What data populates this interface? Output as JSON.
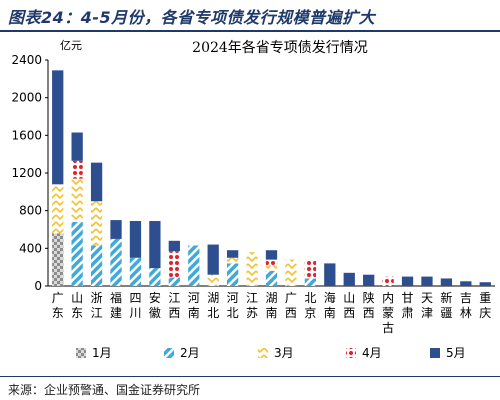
{
  "header": {
    "title": "图表24：4-5月份，各省专项债发行规模普遍扩大"
  },
  "source": "来源：企业预警通、国金证券研究所",
  "chart_data": {
    "type": "bar",
    "stacked": true,
    "title": "2024年各省专项债发行情况",
    "ylabel": "亿元",
    "ylim": [
      0,
      2400
    ],
    "yticks": [
      0,
      400,
      800,
      1200,
      1600,
      2000,
      2400
    ],
    "grid": false,
    "legend_position": "bottom",
    "categories": [
      "广东",
      "山东",
      "浙江",
      "福建",
      "四川",
      "安徽",
      "江西",
      "河南",
      "湖北",
      "河北",
      "江苏",
      "湖南",
      "广西",
      "北京",
      "海南",
      "山西",
      "陕西",
      "内蒙古",
      "甘肃",
      "天津",
      "新疆",
      "吉林",
      "重庆"
    ],
    "series": [
      {
        "name": "1月",
        "color": "#a6a6a6",
        "pattern": "checker",
        "values": [
          560,
          0,
          0,
          0,
          0,
          0,
          0,
          0,
          0,
          0,
          0,
          0,
          0,
          0,
          0,
          0,
          0,
          0,
          0,
          0,
          0,
          0,
          0
        ]
      },
      {
        "name": "2月",
        "color": "#3fa9d9",
        "pattern": "diag",
        "values": [
          0,
          680,
          430,
          500,
          300,
          190,
          90,
          430,
          0,
          240,
          0,
          160,
          0,
          80,
          0,
          0,
          0,
          0,
          0,
          0,
          0,
          0,
          0
        ]
      },
      {
        "name": "3月",
        "color": "#f2c230",
        "pattern": "chevron",
        "values": [
          520,
          460,
          470,
          0,
          0,
          0,
          0,
          0,
          120,
          60,
          360,
          60,
          280,
          0,
          0,
          0,
          0,
          0,
          0,
          0,
          0,
          0,
          0
        ]
      },
      {
        "name": "4月",
        "color": "#e0222a",
        "pattern": "dots",
        "values": [
          0,
          190,
          0,
          0,
          0,
          0,
          280,
          0,
          0,
          0,
          0,
          60,
          0,
          200,
          0,
          0,
          0,
          100,
          0,
          0,
          0,
          0,
          0
        ]
      },
      {
        "name": "5月",
        "color": "#2d4e8f",
        "pattern": "solid",
        "values": [
          1210,
          300,
          410,
          200,
          390,
          500,
          110,
          0,
          320,
          80,
          0,
          100,
          0,
          0,
          240,
          140,
          120,
          0,
          100,
          100,
          80,
          50,
          40
        ]
      }
    ]
  }
}
